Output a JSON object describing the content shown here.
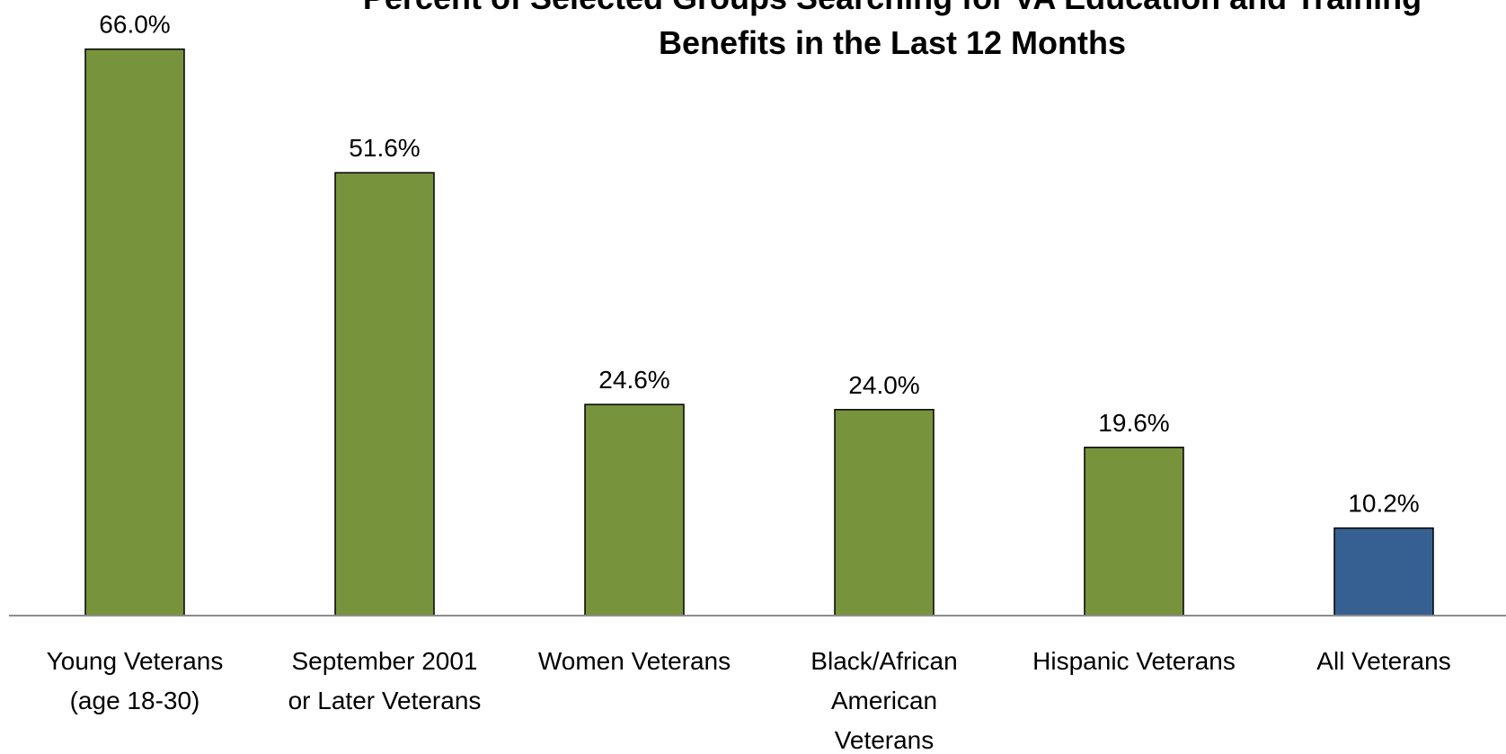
{
  "chart_data": {
    "type": "bar",
    "title": "Percent of Selected Groups Searching for VA Education and Training Benefits in the Last 12 Months",
    "title_lines": [
      "Percent of Selected Groups Searching for VA Education and Training",
      "Benefits in the Last 12 Months"
    ],
    "categories": [
      "Young Veterans (age 18-30)",
      "September 2001 or Later Veterans",
      "Women Veterans",
      "Black/African American Veterans",
      "Hispanic Veterans",
      "All Veterans"
    ],
    "category_lines": [
      [
        "Young Veterans",
        "(age 18-30)"
      ],
      [
        "September 2001",
        "or Later Veterans"
      ],
      [
        "Women Veterans"
      ],
      [
        "Black/African",
        "American",
        "Veterans"
      ],
      [
        "Hispanic Veterans"
      ],
      [
        "All Veterans"
      ]
    ],
    "values": [
      66.0,
      51.6,
      24.6,
      24.0,
      19.6,
      10.2
    ],
    "data_labels": [
      "66.0%",
      "51.6%",
      "24.6%",
      "24.0%",
      "19.6%",
      "10.2%"
    ],
    "bar_colors": [
      "#77933c",
      "#77933c",
      "#77933c",
      "#77933c",
      "#77933c",
      "#376092"
    ],
    "ylim": [
      0,
      70
    ],
    "grid": false,
    "legend": "none",
    "xlabel": "",
    "ylabel": ""
  }
}
